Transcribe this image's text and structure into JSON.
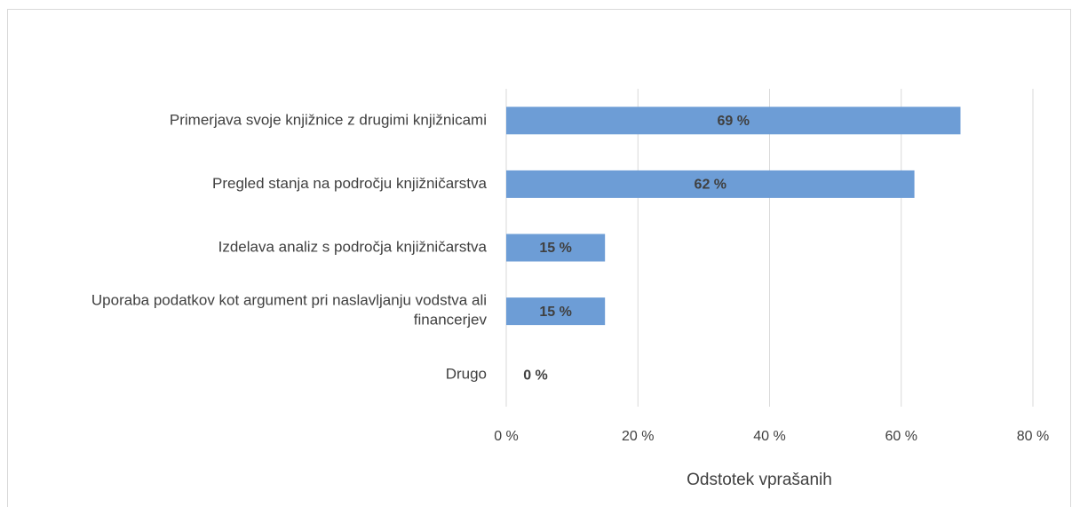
{
  "chart_data": {
    "type": "barh",
    "categories": [
      "Primerjava svoje knjižnice z drugimi knjižnicami",
      "Pregled stanja na področju knjižničarstva",
      "Izdelava analiz s področja knjižničarstva",
      "Uporaba podatkov kot argument pri naslavljanju vodstva ali financerjev",
      "Drugo"
    ],
    "values": [
      69,
      62,
      15,
      15,
      0
    ],
    "value_labels": [
      "69 %",
      "62 %",
      "15 %",
      "15 %",
      "0 %"
    ],
    "color": "#6d9dd6",
    "xlim": [
      0,
      80
    ],
    "xticks": [
      {
        "value": 0,
        "label": "0 %"
      },
      {
        "value": 20,
        "label": "20 %"
      },
      {
        "value": 40,
        "label": "40 %"
      },
      {
        "value": 60,
        "label": "60 %"
      },
      {
        "value": 80,
        "label": "80 %"
      }
    ],
    "xlabel": "Odstotek vprašanih",
    "grid": true
  }
}
